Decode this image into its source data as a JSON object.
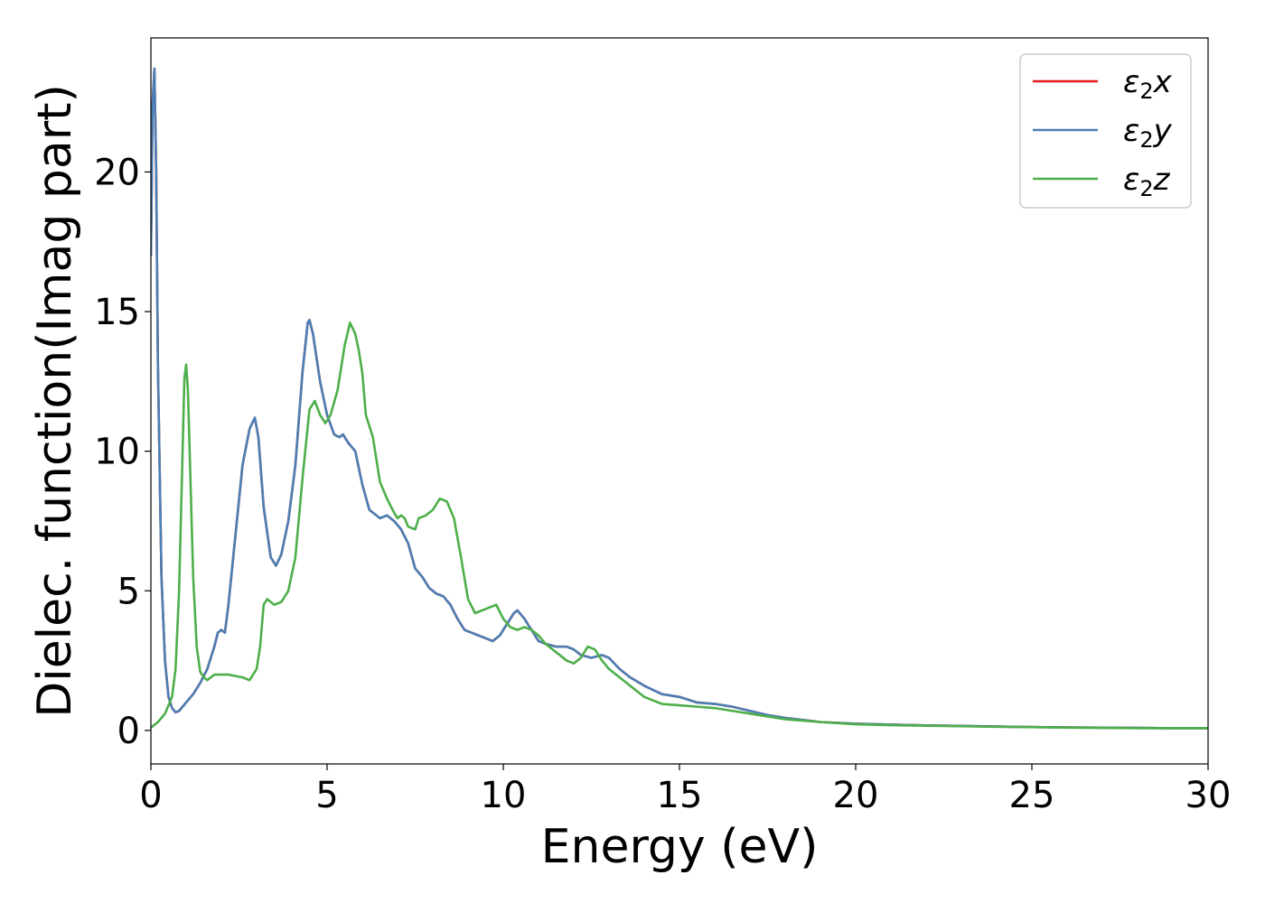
{
  "chart_data": {
    "type": "line",
    "xlabel": "Energy (eV)",
    "ylabel": "Dielec. function(Imag part)",
    "xlim": [
      0,
      30
    ],
    "ylim": [
      -1.2,
      24.8
    ],
    "xticks": [
      0,
      5,
      10,
      15,
      20,
      25,
      30
    ],
    "yticks": [
      0,
      5,
      10,
      15,
      20
    ],
    "grid": false,
    "legend_position": "top-right",
    "series": [
      {
        "name": "ε₂x",
        "legend_base": "ε",
        "legend_sub": "2",
        "legend_suffix": "x",
        "color": "#e41a1c",
        "x": [
          0,
          0.05,
          0.1,
          0.15,
          0.2,
          0.3,
          0.4,
          0.5,
          0.6,
          0.7,
          0.8,
          0.9,
          1.0,
          1.2,
          1.4,
          1.6,
          1.8,
          1.9,
          2.0,
          2.1,
          2.2,
          2.4,
          2.6,
          2.8,
          2.95,
          3.05,
          3.2,
          3.4,
          3.55,
          3.7,
          3.9,
          4.1,
          4.3,
          4.45,
          4.5,
          4.6,
          4.8,
          5.0,
          5.2,
          5.35,
          5.45,
          5.6,
          5.8,
          6.0,
          6.2,
          6.5,
          6.7,
          6.9,
          7.1,
          7.3,
          7.5,
          7.7,
          7.9,
          8.1,
          8.3,
          8.5,
          8.7,
          8.9,
          9.1,
          9.3,
          9.5,
          9.7,
          9.9,
          10.1,
          10.3,
          10.4,
          10.6,
          10.8,
          11.0,
          11.2,
          11.5,
          11.8,
          12.0,
          12.2,
          12.5,
          12.8,
          13.0,
          13.3,
          13.6,
          14.0,
          14.5,
          15.0,
          15.5,
          16.0,
          16.5,
          17.0,
          17.5,
          18.0,
          19.0,
          20.0,
          21.0,
          22.0,
          23.0,
          24.0,
          25.0,
          26.0,
          27.0,
          28.0,
          29.0,
          30.0
        ],
        "y": [
          17.0,
          22.5,
          23.7,
          20.0,
          13.0,
          5.5,
          2.5,
          1.2,
          0.8,
          0.65,
          0.7,
          0.85,
          1.0,
          1.3,
          1.7,
          2.2,
          3.0,
          3.5,
          3.6,
          3.5,
          4.5,
          7.0,
          9.5,
          10.8,
          11.2,
          10.5,
          8.0,
          6.2,
          5.9,
          6.3,
          7.5,
          9.5,
          12.8,
          14.6,
          14.7,
          14.2,
          12.5,
          11.3,
          10.6,
          10.5,
          10.6,
          10.3,
          10.0,
          8.8,
          7.9,
          7.6,
          7.7,
          7.5,
          7.2,
          6.7,
          5.8,
          5.5,
          5.1,
          4.9,
          4.8,
          4.5,
          4.0,
          3.6,
          3.5,
          3.4,
          3.3,
          3.2,
          3.4,
          3.8,
          4.2,
          4.3,
          4.0,
          3.6,
          3.2,
          3.1,
          3.0,
          3.0,
          2.9,
          2.7,
          2.6,
          2.7,
          2.6,
          2.2,
          1.9,
          1.6,
          1.3,
          1.2,
          1.0,
          0.95,
          0.85,
          0.7,
          0.55,
          0.45,
          0.3,
          0.24,
          0.21,
          0.18,
          0.16,
          0.14,
          0.12,
          0.11,
          0.1,
          0.09,
          0.08,
          0.08
        ]
      },
      {
        "name": "ε₂y",
        "legend_base": "ε",
        "legend_sub": "2",
        "legend_suffix": "y",
        "color": "#4a7fb5",
        "x": [
          0,
          0.05,
          0.1,
          0.15,
          0.2,
          0.3,
          0.4,
          0.5,
          0.6,
          0.7,
          0.8,
          0.9,
          1.0,
          1.2,
          1.4,
          1.6,
          1.8,
          1.9,
          2.0,
          2.1,
          2.2,
          2.4,
          2.6,
          2.8,
          2.95,
          3.05,
          3.2,
          3.4,
          3.55,
          3.7,
          3.9,
          4.1,
          4.3,
          4.45,
          4.5,
          4.6,
          4.8,
          5.0,
          5.2,
          5.35,
          5.45,
          5.6,
          5.8,
          6.0,
          6.2,
          6.5,
          6.7,
          6.9,
          7.1,
          7.3,
          7.5,
          7.7,
          7.9,
          8.1,
          8.3,
          8.5,
          8.7,
          8.9,
          9.1,
          9.3,
          9.5,
          9.7,
          9.9,
          10.1,
          10.3,
          10.4,
          10.6,
          10.8,
          11.0,
          11.2,
          11.5,
          11.8,
          12.0,
          12.2,
          12.5,
          12.8,
          13.0,
          13.3,
          13.6,
          14.0,
          14.5,
          15.0,
          15.5,
          16.0,
          16.5,
          17.0,
          17.5,
          18.0,
          19.0,
          20.0,
          21.0,
          22.0,
          23.0,
          24.0,
          25.0,
          26.0,
          27.0,
          28.0,
          29.0,
          30.0
        ],
        "y": [
          17.0,
          22.5,
          23.7,
          20.0,
          13.0,
          5.5,
          2.5,
          1.2,
          0.8,
          0.65,
          0.7,
          0.85,
          1.0,
          1.3,
          1.7,
          2.2,
          3.0,
          3.5,
          3.6,
          3.5,
          4.5,
          7.0,
          9.5,
          10.8,
          11.2,
          10.5,
          8.0,
          6.2,
          5.9,
          6.3,
          7.5,
          9.5,
          12.8,
          14.6,
          14.7,
          14.2,
          12.5,
          11.3,
          10.6,
          10.5,
          10.6,
          10.3,
          10.0,
          8.8,
          7.9,
          7.6,
          7.7,
          7.5,
          7.2,
          6.7,
          5.8,
          5.5,
          5.1,
          4.9,
          4.8,
          4.5,
          4.0,
          3.6,
          3.5,
          3.4,
          3.3,
          3.2,
          3.4,
          3.8,
          4.2,
          4.3,
          4.0,
          3.6,
          3.2,
          3.1,
          3.0,
          3.0,
          2.9,
          2.7,
          2.6,
          2.7,
          2.6,
          2.2,
          1.9,
          1.6,
          1.3,
          1.2,
          1.0,
          0.95,
          0.85,
          0.7,
          0.55,
          0.45,
          0.3,
          0.24,
          0.21,
          0.18,
          0.16,
          0.14,
          0.12,
          0.11,
          0.1,
          0.09,
          0.08,
          0.08
        ]
      },
      {
        "name": "ε₂z",
        "legend_base": "ε",
        "legend_sub": "2",
        "legend_suffix": "z",
        "color": "#4daf4a",
        "x": [
          0,
          0.2,
          0.4,
          0.6,
          0.7,
          0.8,
          0.9,
          0.95,
          1.0,
          1.05,
          1.1,
          1.2,
          1.3,
          1.4,
          1.5,
          1.6,
          1.8,
          2.0,
          2.2,
          2.4,
          2.6,
          2.8,
          3.0,
          3.1,
          3.2,
          3.3,
          3.4,
          3.5,
          3.7,
          3.9,
          4.1,
          4.3,
          4.5,
          4.65,
          4.8,
          4.95,
          5.1,
          5.3,
          5.5,
          5.65,
          5.8,
          5.9,
          6.0,
          6.1,
          6.3,
          6.5,
          6.7,
          6.9,
          7.0,
          7.1,
          7.2,
          7.3,
          7.5,
          7.6,
          7.8,
          8.0,
          8.2,
          8.4,
          8.6,
          8.8,
          9.0,
          9.2,
          9.4,
          9.6,
          9.8,
          10.0,
          10.2,
          10.4,
          10.6,
          10.8,
          11.0,
          11.2,
          11.5,
          11.8,
          12.0,
          12.2,
          12.4,
          12.6,
          12.8,
          13.0,
          13.3,
          13.6,
          14.0,
          14.5,
          15.0,
          15.5,
          16.0,
          16.5,
          17.0,
          17.5,
          18.0,
          19.0,
          20.0,
          21.0,
          22.0,
          23.0,
          24.0,
          25.0,
          26.0,
          27.0,
          28.0,
          29.0,
          30.0
        ],
        "y": [
          0.1,
          0.3,
          0.6,
          1.2,
          2.2,
          5.0,
          10.0,
          12.6,
          13.1,
          12.2,
          10.0,
          5.5,
          3.0,
          2.1,
          1.9,
          1.8,
          2.0,
          2.0,
          2.0,
          1.95,
          1.9,
          1.8,
          2.2,
          3.0,
          4.5,
          4.7,
          4.6,
          4.5,
          4.6,
          5.0,
          6.2,
          9.0,
          11.5,
          11.8,
          11.3,
          11.0,
          11.3,
          12.2,
          13.8,
          14.6,
          14.2,
          13.6,
          12.8,
          11.3,
          10.5,
          8.9,
          8.3,
          7.8,
          7.6,
          7.7,
          7.6,
          7.3,
          7.2,
          7.6,
          7.7,
          7.9,
          8.3,
          8.2,
          7.6,
          6.2,
          4.7,
          4.2,
          4.3,
          4.4,
          4.5,
          4.0,
          3.7,
          3.6,
          3.7,
          3.6,
          3.4,
          3.1,
          2.8,
          2.5,
          2.4,
          2.6,
          3.0,
          2.9,
          2.5,
          2.2,
          1.9,
          1.6,
          1.2,
          0.95,
          0.9,
          0.85,
          0.8,
          0.7,
          0.6,
          0.5,
          0.4,
          0.3,
          0.22,
          0.19,
          0.17,
          0.15,
          0.13,
          0.12,
          0.1,
          0.09,
          0.08,
          0.08,
          0.08
        ]
      }
    ]
  }
}
